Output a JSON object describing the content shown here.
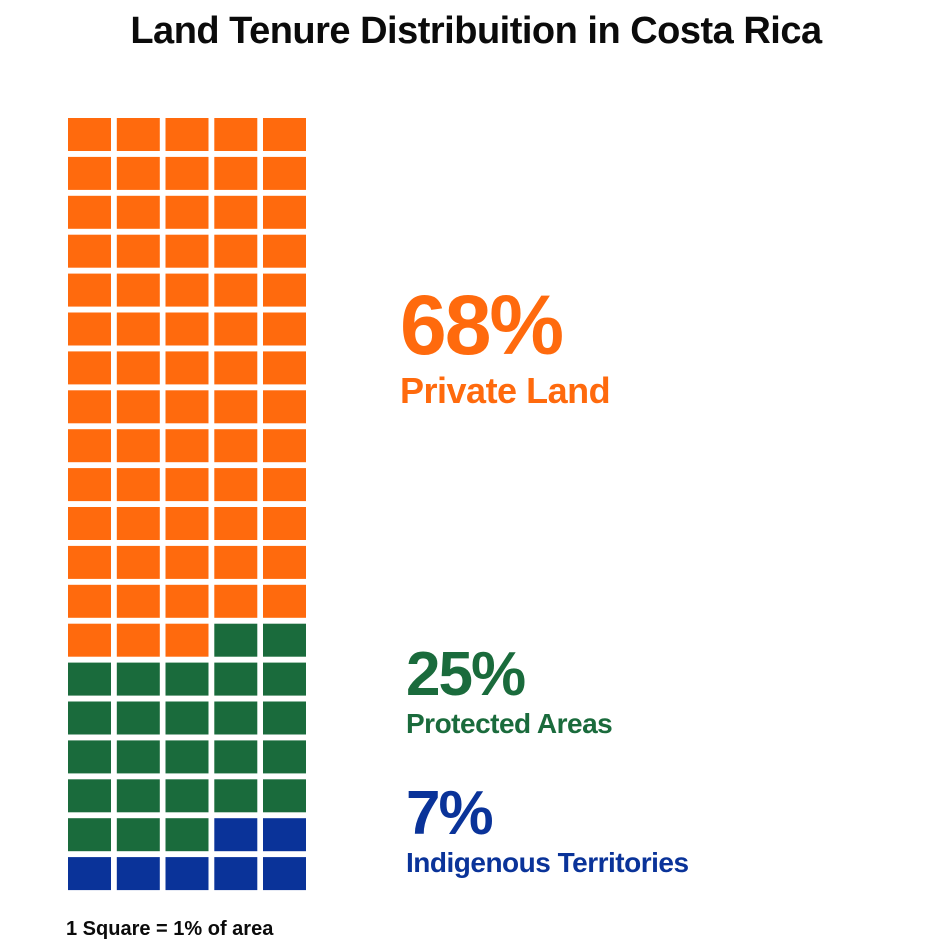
{
  "title": "Land Tenure Distribuition in Costa Rica",
  "note": "1 Square = 1% of area",
  "chart_data": {
    "type": "waffle",
    "total_squares": 100,
    "columns": 5,
    "rows": 20,
    "unit": "1 Square = 1% of area",
    "series": [
      {
        "label": "Private Land",
        "pct_text": "68%",
        "value": 68,
        "color": "#FF6A0D"
      },
      {
        "label": "Protected Areas",
        "pct_text": "25%",
        "value": 25,
        "color": "#1A6B3C"
      },
      {
        "label": "Indigenous Territories",
        "pct_text": "7%",
        "value": 7,
        "color": "#0A3399"
      }
    ]
  }
}
